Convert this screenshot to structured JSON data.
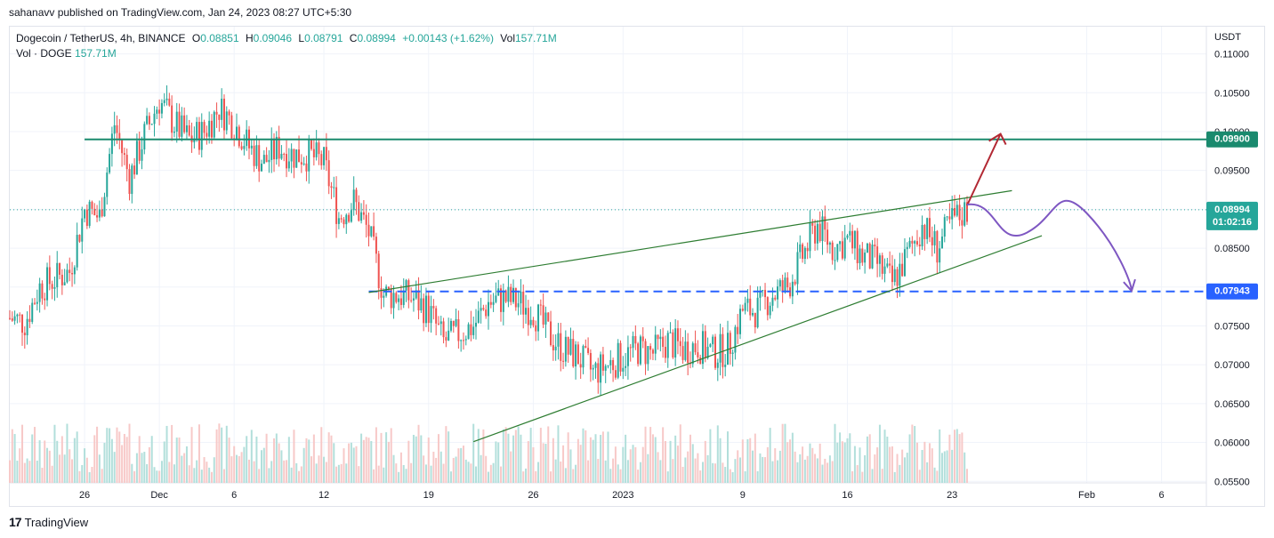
{
  "attribution": "sahanavv published on TradingView.com, Jan 24, 2023 08:27 UTC+5:30",
  "legend": {
    "symbol": "Dogecoin / TetherUS, 4h, BINANCE",
    "o_label": "O",
    "o_value": "0.08851",
    "h_label": "H",
    "h_value": "0.09046",
    "l_label": "L",
    "l_value": "0.08791",
    "c_label": "C",
    "c_value": "0.08994",
    "change": "+0.00143 (+1.62%)",
    "vol_label": "Vol",
    "vol_value": "157.71M",
    "vol_row_label": "Vol · DOGE",
    "vol_row_value": "157.71M"
  },
  "footer": {
    "logo": "17",
    "brand": "TradingView"
  },
  "colors": {
    "up": "#26a69a",
    "down": "#ef5350",
    "resistance": "#1a8a6e",
    "support": "#2962ff",
    "wedge": "#2e7d32",
    "projection": "#7e57c2",
    "up_arrow": "#b22833"
  },
  "chart_data": {
    "type": "candlestick",
    "unit": "USDT",
    "timeframe": "4h",
    "ylim": [
      0.0548,
      0.1135
    ],
    "y_ticks": [
      "0.11000",
      "0.10500",
      "0.10000",
      "0.09500",
      "0.09000",
      "0.08500",
      "0.08000",
      "0.07500",
      "0.07000",
      "0.06500",
      "0.06000",
      "0.05500"
    ],
    "x_ticks": [
      "26",
      "Dec",
      "6",
      "12",
      "19",
      "26",
      "2023",
      "9",
      "16",
      "23",
      "Feb",
      "6"
    ],
    "x_range": [
      "2022-11-21",
      "2023-02-09"
    ],
    "current_price": {
      "label": "0.08994",
      "countdown": "01:02:16",
      "value": 0.08994
    },
    "levels": [
      {
        "label": "0.09900",
        "value": 0.099,
        "style": "solid"
      },
      {
        "label": "0.07943",
        "value": 0.07943,
        "style": "dashed"
      }
    ],
    "ohlc_anchors": [
      [
        "2022-11-21",
        0.076
      ],
      [
        "2022-11-22",
        0.0755
      ],
      [
        "2022-11-23",
        0.08
      ],
      [
        "2022-11-24",
        0.081
      ],
      [
        "2022-11-25",
        0.082
      ],
      [
        "2022-11-26",
        0.09
      ],
      [
        "2022-11-27",
        0.089
      ],
      [
        "2022-11-28",
        0.101
      ],
      [
        "2022-11-29",
        0.094
      ],
      [
        "2022-11-30",
        0.0995
      ],
      [
        "2022-12-01",
        0.104
      ],
      [
        "2022-12-02",
        0.101
      ],
      [
        "2022-12-03",
        0.099
      ],
      [
        "2022-12-04",
        0.1
      ],
      [
        "2022-12-05",
        0.103
      ],
      [
        "2022-12-06",
        0.101
      ],
      [
        "2022-12-07",
        0.098
      ],
      [
        "2022-12-08",
        0.096
      ],
      [
        "2022-12-09",
        0.098
      ],
      [
        "2022-12-10",
        0.097
      ],
      [
        "2022-12-11",
        0.097
      ],
      [
        "2022-12-12",
        0.096
      ],
      [
        "2022-12-13",
        0.089
      ],
      [
        "2022-12-14",
        0.091
      ],
      [
        "2022-12-15",
        0.087
      ],
      [
        "2022-12-16",
        0.079
      ],
      [
        "2022-12-17",
        0.079
      ],
      [
        "2022-12-18",
        0.0785
      ],
      [
        "2022-12-19",
        0.077
      ],
      [
        "2022-12-20",
        0.073
      ],
      [
        "2022-12-21",
        0.074
      ],
      [
        "2022-12-22",
        0.075
      ],
      [
        "2022-12-23",
        0.078
      ],
      [
        "2022-12-24",
        0.0785
      ],
      [
        "2022-12-25",
        0.078
      ],
      [
        "2022-12-26",
        0.077
      ],
      [
        "2022-12-27",
        0.074
      ],
      [
        "2022-12-28",
        0.072
      ],
      [
        "2022-12-29",
        0.071
      ],
      [
        "2022-12-30",
        0.069
      ],
      [
        "2022-12-31",
        0.07
      ],
      [
        "2023-01-01",
        0.071
      ],
      [
        "2023-01-02",
        0.072
      ],
      [
        "2023-01-03",
        0.0715
      ],
      [
        "2023-01-04",
        0.073
      ],
      [
        "2023-01-05",
        0.072
      ],
      [
        "2023-01-06",
        0.0725
      ],
      [
        "2023-01-07",
        0.0715
      ],
      [
        "2023-01-08",
        0.072
      ],
      [
        "2023-01-09",
        0.077
      ],
      [
        "2023-01-10",
        0.077
      ],
      [
        "2023-01-11",
        0.079
      ],
      [
        "2023-01-12",
        0.08
      ],
      [
        "2023-01-13",
        0.084
      ],
      [
        "2023-01-14",
        0.088
      ],
      [
        "2023-01-15",
        0.085
      ],
      [
        "2023-01-16",
        0.086
      ],
      [
        "2023-01-17",
        0.084
      ],
      [
        "2023-01-18",
        0.083
      ],
      [
        "2023-01-19",
        0.0805
      ],
      [
        "2023-01-20",
        0.084
      ],
      [
        "2023-01-21",
        0.088
      ],
      [
        "2023-01-22",
        0.085
      ],
      [
        "2023-01-23",
        0.0885
      ],
      [
        "2023-01-24",
        0.0899
      ]
    ],
    "volume_label": "Vol · DOGE"
  }
}
